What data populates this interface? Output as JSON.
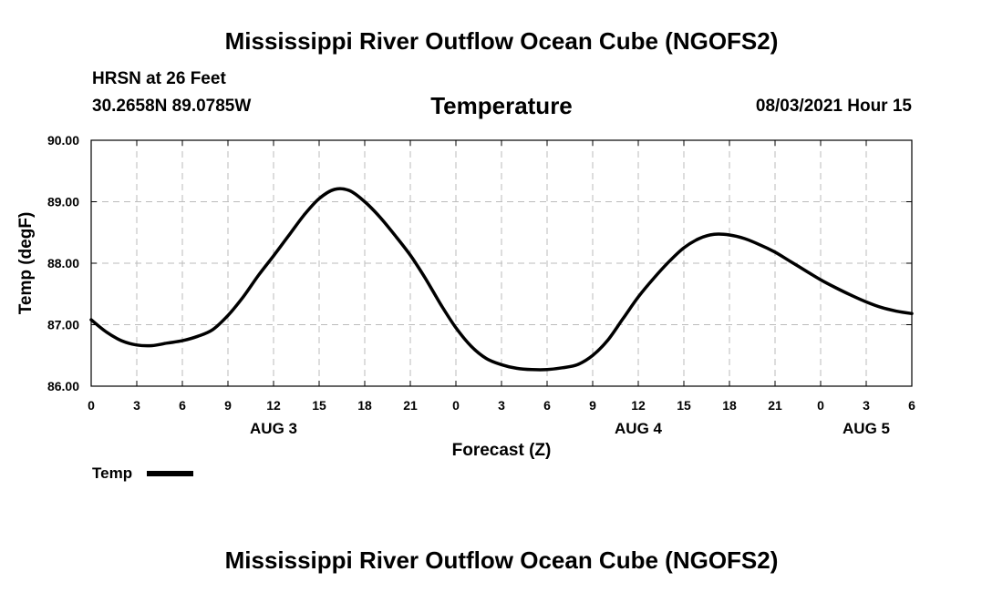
{
  "header": {
    "title": "Mississippi River Outflow Ocean Cube (NGOFS2)",
    "station": "HRSN at 26 Feet",
    "coords": "30.2658N  89.0785W",
    "datetime": "08/03/2021 Hour 15"
  },
  "footer": {
    "title": "Mississippi River Outflow Ocean Cube (NGOFS2)"
  },
  "chart_data": {
    "type": "line",
    "title": "Temperature",
    "xlabel": "Forecast (Z)",
    "ylabel": "Temp (degF)",
    "xlim": [
      0,
      54
    ],
    "ylim": [
      86.0,
      90.0
    ],
    "grid": true,
    "x_ticks": [
      0,
      3,
      6,
      9,
      12,
      15,
      18,
      21,
      24,
      27,
      30,
      33,
      36,
      39,
      42,
      45,
      48,
      51,
      54
    ],
    "x_tick_labels": [
      "0",
      "3",
      "6",
      "9",
      "12",
      "15",
      "18",
      "21",
      "0",
      "3",
      "6",
      "9",
      "12",
      "15",
      "18",
      "21",
      "0",
      "3",
      "6"
    ],
    "y_ticks": [
      86.0,
      87.0,
      88.0,
      89.0,
      90.0
    ],
    "y_tick_labels": [
      "86.00",
      "87.00",
      "88.00",
      "89.00",
      "90.00"
    ],
    "date_labels": [
      {
        "x": 12,
        "label": "AUG 3"
      },
      {
        "x": 36,
        "label": "AUG 4"
      },
      {
        "x": 51,
        "label": "AUG 5"
      }
    ],
    "legend": {
      "placement": "bottom-left",
      "entries": [
        "Temp"
      ]
    },
    "series": [
      {
        "name": "Temp",
        "color": "#000000",
        "x": [
          0,
          1,
          2,
          3,
          4,
          5,
          6,
          7,
          8,
          9,
          10,
          11,
          12,
          13,
          14,
          15,
          16,
          17,
          18,
          19,
          20,
          21,
          22,
          23,
          24,
          25,
          26,
          27,
          28,
          29,
          30,
          31,
          32,
          33,
          34,
          35,
          36,
          37,
          38,
          39,
          40,
          41,
          42,
          43,
          44,
          45,
          46,
          47,
          48,
          49,
          50,
          51,
          52,
          53,
          54
        ],
        "values": [
          87.08,
          86.88,
          86.74,
          86.67,
          86.66,
          86.7,
          86.74,
          86.81,
          86.92,
          87.15,
          87.45,
          87.8,
          88.12,
          88.45,
          88.78,
          89.05,
          89.2,
          89.18,
          89.0,
          88.75,
          88.45,
          88.13,
          87.75,
          87.33,
          86.95,
          86.65,
          86.45,
          86.35,
          86.29,
          86.27,
          86.27,
          86.3,
          86.35,
          86.5,
          86.75,
          87.1,
          87.45,
          87.75,
          88.02,
          88.25,
          88.4,
          88.47,
          88.46,
          88.4,
          88.3,
          88.18,
          88.03,
          87.88,
          87.73,
          87.6,
          87.48,
          87.37,
          87.28,
          87.22,
          87.18
        ]
      }
    ]
  }
}
